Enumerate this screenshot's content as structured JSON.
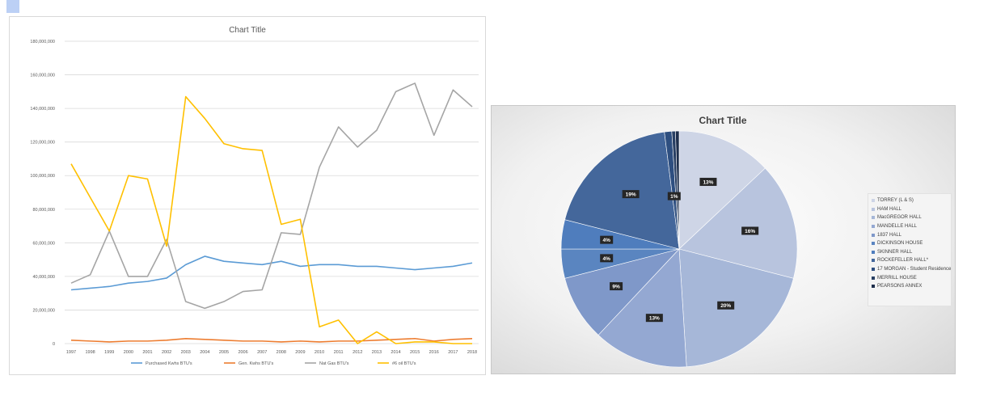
{
  "charts": {
    "line": {
      "title": "Chart Title",
      "type": "line",
      "colors": [
        "#5b9bd5",
        "#ed7d31",
        "#a5a5a5",
        "#ffc000"
      ]
    },
    "pie": {
      "title": "Chart Title",
      "type": "pie"
    }
  },
  "chart_data": [
    {
      "type": "line",
      "title": "Chart Title",
      "x": [
        "1997",
        "1998",
        "1999",
        "2000",
        "2001",
        "2002",
        "2003",
        "2004",
        "2005",
        "2006",
        "2007",
        "2008",
        "2009",
        "2010",
        "2011",
        "2012",
        "2013",
        "2014",
        "2015",
        "2016",
        "2017",
        "2018"
      ],
      "ylim": [
        0,
        180000000
      ],
      "yticks": [
        0,
        20000000,
        40000000,
        60000000,
        80000000,
        100000000,
        120000000,
        140000000,
        160000000,
        180000000
      ],
      "ytick_labels": [
        "0",
        "20,000,000",
        "40,000,000",
        "60,000,000",
        "80,000,000",
        "100,000,000",
        "120,000,000",
        "140,000,000",
        "160,000,000",
        "180,000,000"
      ],
      "grid": true,
      "legend": "bottom",
      "series": [
        {
          "name": "Purchased Kwhs BTU's",
          "color": "#5b9bd5",
          "values": [
            32000000,
            33000000,
            34000000,
            36000000,
            37000000,
            39000000,
            47000000,
            52000000,
            49000000,
            48000000,
            47000000,
            49000000,
            46000000,
            47000000,
            47000000,
            46000000,
            46000000,
            45000000,
            44000000,
            45000000,
            46000000,
            48000000
          ]
        },
        {
          "name": "Gen. Kwhs BTU's",
          "color": "#ed7d31",
          "values": [
            2000000,
            1500000,
            1000000,
            1500000,
            1500000,
            2000000,
            3000000,
            2500000,
            2000000,
            1500000,
            1500000,
            1000000,
            1500000,
            1000000,
            1500000,
            1500000,
            2000000,
            2500000,
            3000000,
            1500000,
            2500000,
            3000000
          ]
        },
        {
          "name": "Nat Gas BTU's",
          "color": "#a5a5a5",
          "values": [
            36000000,
            41000000,
            67000000,
            40000000,
            40000000,
            62000000,
            25000000,
            21000000,
            25000000,
            31000000,
            32000000,
            66000000,
            65000000,
            105000000,
            129000000,
            117000000,
            127000000,
            150000000,
            155000000,
            124000000,
            151000000,
            141000000
          ]
        },
        {
          "name": "#6 oil BTU's",
          "color": "#ffc000",
          "values": [
            107000000,
            87000000,
            67000000,
            100000000,
            98000000,
            58000000,
            147000000,
            134000000,
            119000000,
            116000000,
            115000000,
            71000000,
            74000000,
            10000000,
            14000000,
            0,
            7000000,
            0,
            1000000,
            1000000,
            0,
            0
          ]
        }
      ]
    },
    {
      "type": "pie",
      "title": "Chart Title",
      "legend": "right",
      "labels": [
        "TORREY (L & S)",
        "HAM HALL",
        "MacGREGOR HALL",
        "MANDELLE HALL",
        "1837 HALL",
        "DICKINSON HOUSE",
        "SKINNER HALL",
        "ROCKEFELLER HALL*",
        "17 MORGAN - Student Residence",
        "MERRILL HOUSE",
        "PEARSONS ANNEX"
      ],
      "values": [
        13,
        16,
        20,
        13,
        9,
        4,
        4,
        19,
        1,
        0.5,
        0.5
      ],
      "data_labels": [
        "13%",
        "16%",
        "20%",
        "13%",
        "9%",
        "4%",
        "4%",
        "19%",
        "1%",
        "",
        ""
      ],
      "colors": [
        "#ced5e6",
        "#b8c4de",
        "#a6b7d8",
        "#94a8d2",
        "#7f98c9",
        "#5a85c0",
        "#4f7dbd",
        "#44679b",
        "#2e4f80",
        "#283f63",
        "#1e2f4c"
      ]
    }
  ]
}
